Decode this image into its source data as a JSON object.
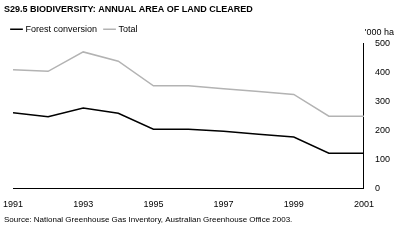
{
  "chart_data": {
    "type": "line",
    "title": "S29.5 BIODIVERSITY: ANNUAL AREA OF LAND CLEARED",
    "ylabel": "'000 ha",
    "source": "Source: National Greenhouse Gas Inventory, Australian Greenhouse Office 2003.",
    "x": [
      1991,
      1992,
      1993,
      1994,
      1995,
      1996,
      1997,
      1998,
      1999,
      2000,
      2001
    ],
    "series": [
      {
        "name": "Forest conversion",
        "color": "#000000",
        "values": [
          262,
          248,
          278,
          260,
          205,
          205,
          198,
          188,
          178,
          122,
          122
        ]
      },
      {
        "name": "Total",
        "color": "#b3b3b3",
        "values": [
          410,
          405,
          472,
          440,
          355,
          355,
          345,
          335,
          325,
          250,
          250
        ]
      }
    ],
    "xlim": [
      1991,
      2001
    ],
    "xticks": [
      1991,
      1993,
      1995,
      1997,
      1999,
      2001
    ],
    "ylim": [
      0,
      500
    ],
    "yticks": [
      0,
      100,
      200,
      300,
      400,
      500
    ],
    "grid": false,
    "legend": "top left"
  }
}
